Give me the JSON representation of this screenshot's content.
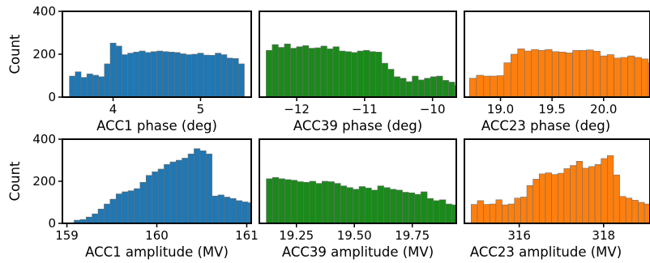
{
  "figure": {
    "ylabel": "Count",
    "yticks": [
      "0",
      "200",
      "400"
    ]
  },
  "colors": {
    "blue": "#1f77b4",
    "green": "#1a8a1a",
    "orange": "#ff7f0e"
  },
  "chart_data": [
    {
      "type": "bar",
      "xlabel": "ACC1 phase (deg)",
      "ylabel": "Count",
      "color": "#1f77b4",
      "xlim": [
        3.42,
        5.58
      ],
      "ylim": [
        0,
        400
      ],
      "xticks": [
        "4",
        "5"
      ],
      "xtick_values": [
        4,
        5
      ],
      "show_yticks": true,
      "bin_start": 3.5,
      "bin_width": 0.0667,
      "values": [
        98,
        118,
        92,
        108,
        102,
        95,
        155,
        252,
        238,
        198,
        205,
        210,
        215,
        208,
        212,
        215,
        212,
        210,
        208,
        202,
        198,
        200,
        205,
        196,
        195,
        205,
        198,
        182,
        180,
        155
      ]
    },
    {
      "type": "bar",
      "xlabel": "ACC39 phase (deg)",
      "ylabel": "",
      "color": "#1a8a1a",
      "xlim": [
        -12.55,
        -9.65
      ],
      "ylim": [
        0,
        400
      ],
      "xticks": [
        "−12",
        "−11",
        "−10"
      ],
      "xtick_values": [
        -12,
        -11,
        -10
      ],
      "show_yticks": false,
      "bin_start": -12.45,
      "bin_width": 0.0896,
      "values": [
        218,
        245,
        232,
        248,
        228,
        235,
        240,
        228,
        230,
        238,
        225,
        235,
        215,
        212,
        208,
        215,
        218,
        212,
        210,
        158,
        130,
        95,
        88,
        72,
        98,
        80,
        88,
        95,
        98,
        78,
        70,
        55
      ]
    },
    {
      "type": "bar",
      "xlabel": "ACC23 phase (deg)",
      "ylabel": "",
      "color": "#ff7f0e",
      "xlim": [
        18.65,
        20.45
      ],
      "ylim": [
        0,
        400
      ],
      "xticks": [
        "19.0",
        "19.5",
        "20.0"
      ],
      "xtick_values": [
        19.0,
        19.5,
        20.0
      ],
      "show_yticks": false,
      "bin_start": 18.7,
      "bin_width": 0.0667,
      "values": [
        88,
        102,
        98,
        98,
        100,
        160,
        200,
        225,
        215,
        222,
        218,
        222,
        212,
        210,
        206,
        218,
        218,
        220,
        214,
        192,
        198,
        182,
        185,
        192,
        185,
        178,
        160,
        170,
        182,
        165
      ]
    },
    {
      "type": "bar",
      "xlabel": "ACC1 amplitude (MV)",
      "ylabel": "Count",
      "color": "#1f77b4",
      "xlim": [
        158.95,
        161.05
      ],
      "ylim": [
        0,
        400
      ],
      "xticks": [
        "159",
        "160",
        "161"
      ],
      "xtick_values": [
        159,
        160,
        161
      ],
      "show_yticks": true,
      "bin_start": 159.08,
      "bin_width": 0.0667,
      "values": [
        15,
        18,
        30,
        45,
        68,
        92,
        115,
        140,
        150,
        155,
        165,
        195,
        228,
        245,
        258,
        280,
        292,
        300,
        310,
        330,
        355,
        345,
        330,
        130,
        135,
        125,
        118,
        108,
        102,
        98
      ]
    },
    {
      "type": "bar",
      "xlabel": "ACC39 amplitude (MV)",
      "ylabel": "",
      "color": "#1a8a1a",
      "xlim": [
        19.09,
        19.94
      ],
      "ylim": [
        0,
        400
      ],
      "xticks": [
        "19.25",
        "19.50",
        "19.75"
      ],
      "xtick_values": [
        19.25,
        19.5,
        19.75
      ],
      "show_yticks": false,
      "bin_start": 19.12,
      "bin_width": 0.0267,
      "values": [
        212,
        218,
        212,
        208,
        205,
        198,
        195,
        200,
        190,
        200,
        198,
        190,
        178,
        170,
        162,
        175,
        168,
        158,
        178,
        170,
        162,
        158,
        148,
        145,
        138,
        150,
        118,
        108,
        112,
        92,
        88
      ]
    },
    {
      "type": "bar",
      "xlabel": "ACC23 amplitude (MV)",
      "ylabel": "",
      "color": "#ff7f0e",
      "xlim": [
        314.7,
        319.1
      ],
      "ylim": [
        0,
        400
      ],
      "xticks": [
        "316",
        "318"
      ],
      "xtick_values": [
        316,
        318
      ],
      "show_yticks": false,
      "bin_start": 314.86,
      "bin_width": 0.1467,
      "values": [
        90,
        108,
        90,
        92,
        112,
        88,
        92,
        120,
        125,
        180,
        210,
        235,
        240,
        232,
        238,
        260,
        275,
        295,
        262,
        270,
        280,
        308,
        322,
        230,
        128,
        120,
        110,
        100,
        92
      ]
    }
  ]
}
